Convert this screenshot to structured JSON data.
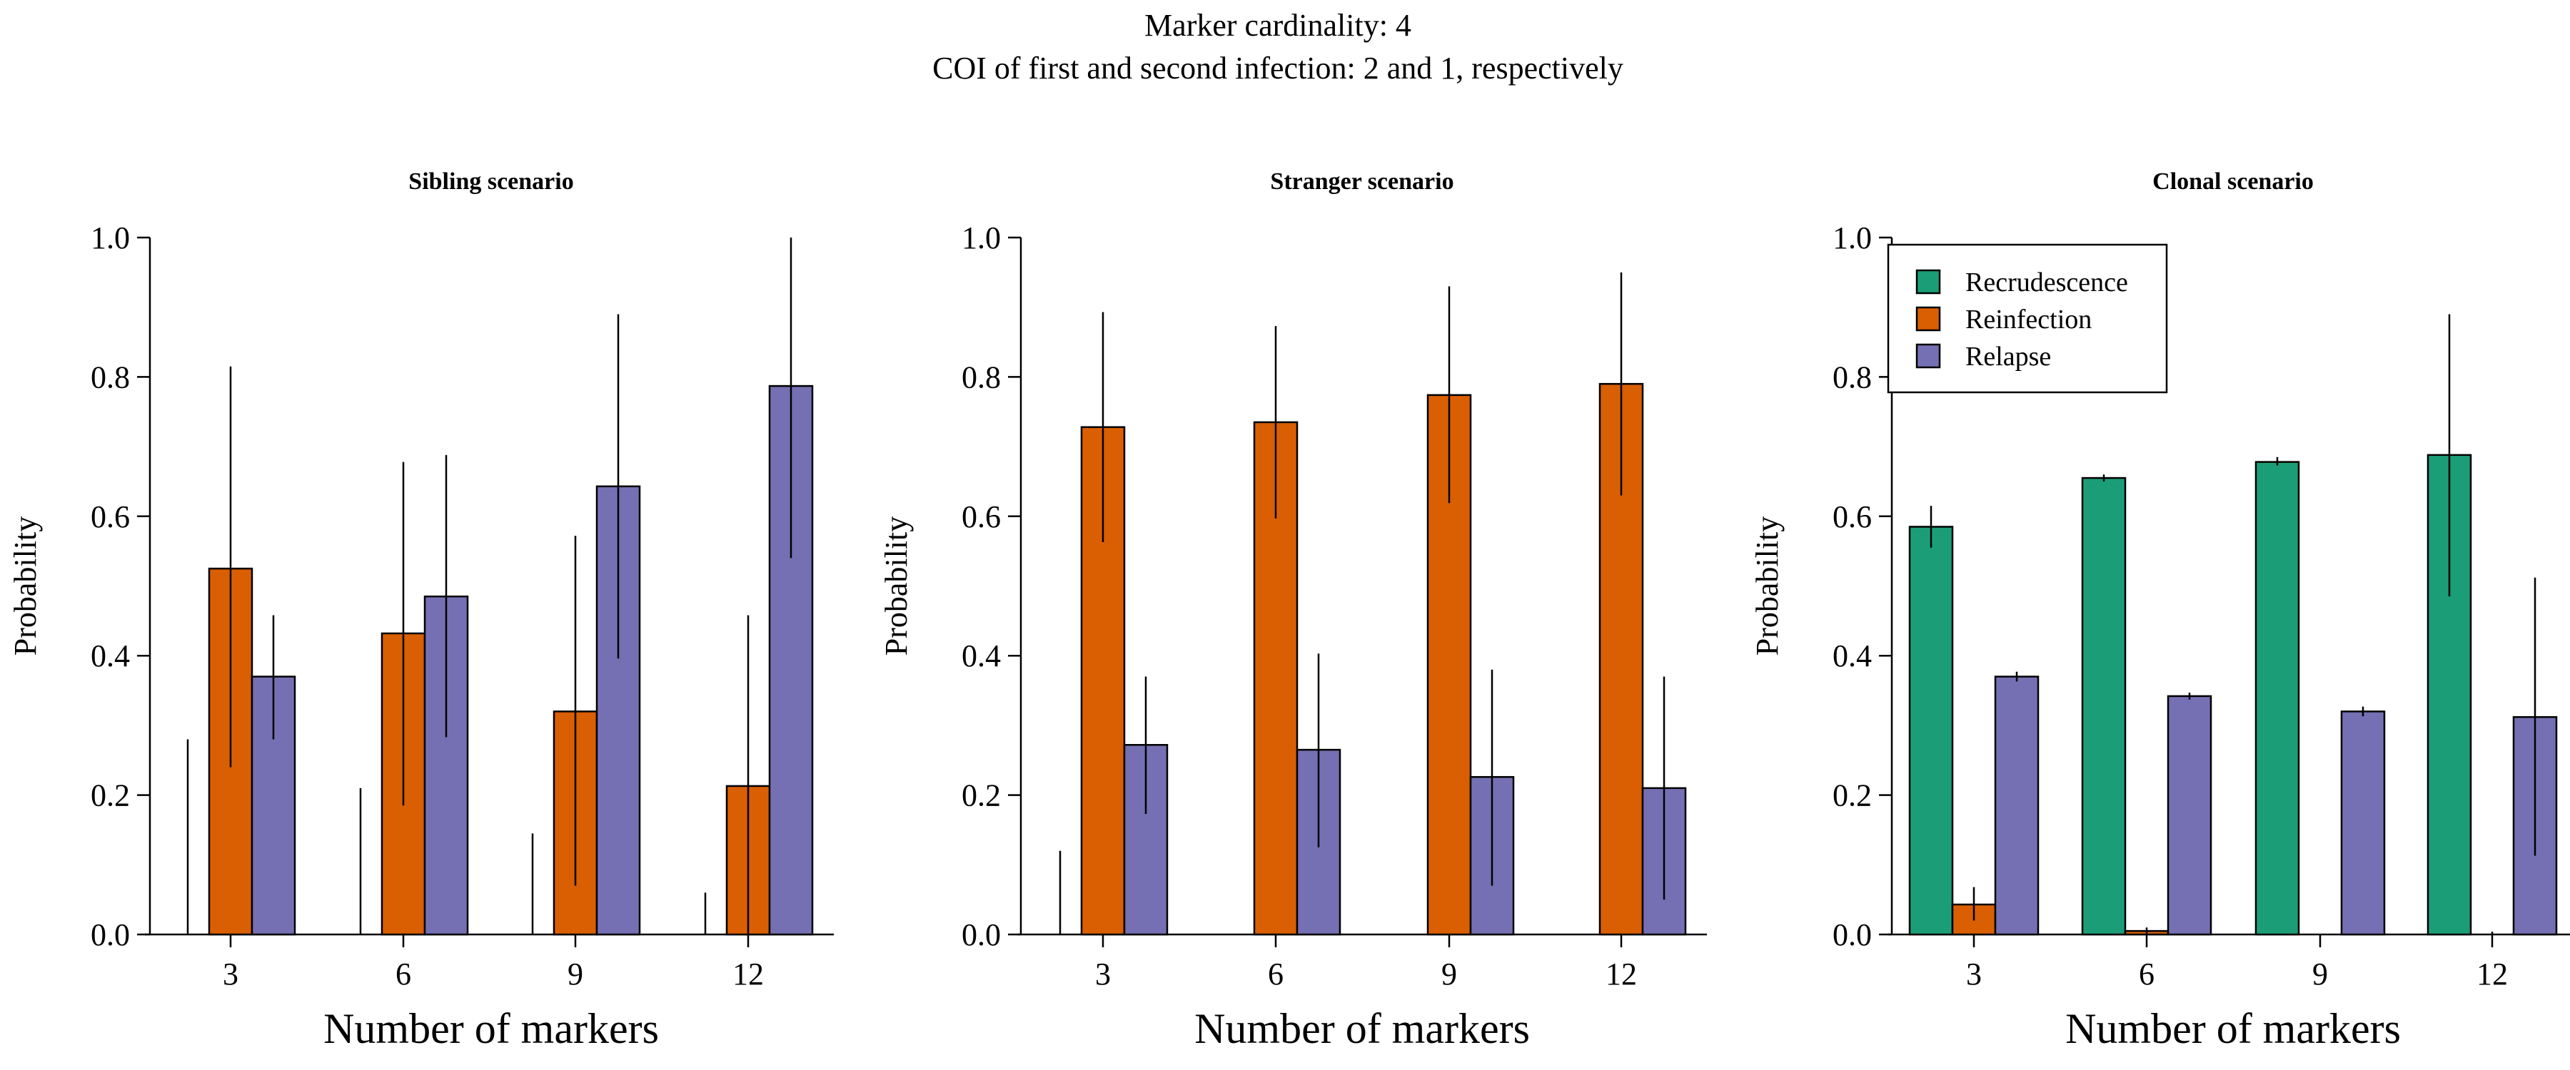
{
  "figure": {
    "title_line1": "Marker cardinality: 4",
    "title_line2": "COI of first and second infection: 2 and 1, respectively"
  },
  "chart_data": [
    {
      "type": "bar",
      "title": "Sibling scenario",
      "xlabel": "Number of markers",
      "ylabel": "Probability",
      "ylim": [
        0,
        1
      ],
      "yticks": [
        "0.0",
        "0.2",
        "0.4",
        "0.6",
        "0.8",
        "1.0"
      ],
      "categories": [
        "3",
        "6",
        "9",
        "12"
      ],
      "legend": false,
      "series": [
        {
          "name": "Recrudescence",
          "color": "#1b9e77",
          "values": [
            0.0,
            0.0,
            0.0,
            0.0
          ],
          "lower": [
            0.0,
            0.0,
            0.0,
            0.0
          ],
          "upper": [
            0.28,
            0.21,
            0.145,
            0.06
          ]
        },
        {
          "name": "Reinfection",
          "color": "#d95f02",
          "values": [
            0.525,
            0.432,
            0.32,
            0.213
          ],
          "lower": [
            0.24,
            0.185,
            0.07,
            0.0
          ],
          "upper": [
            0.815,
            0.678,
            0.572,
            0.458
          ]
        },
        {
          "name": "Relapse",
          "color": "#7570b3",
          "values": [
            0.37,
            0.485,
            0.643,
            0.787
          ],
          "lower": [
            0.28,
            0.283,
            0.396,
            0.54
          ],
          "upper": [
            0.458,
            0.688,
            0.89,
            1.0
          ]
        }
      ]
    },
    {
      "type": "bar",
      "title": "Stranger scenario",
      "xlabel": "Number of markers",
      "ylabel": "Probability",
      "ylim": [
        0,
        1
      ],
      "yticks": [
        "0.0",
        "0.2",
        "0.4",
        "0.6",
        "0.8",
        "1.0"
      ],
      "categories": [
        "3",
        "6",
        "9",
        "12"
      ],
      "legend": false,
      "series": [
        {
          "name": "Recrudescence",
          "color": "#1b9e77",
          "values": [
            0.0,
            0.0,
            0.0,
            0.0
          ],
          "lower": [
            0.0,
            0.0,
            0.0,
            0.0
          ],
          "upper": [
            0.12,
            0.0,
            0.0,
            0.0
          ]
        },
        {
          "name": "Reinfection",
          "color": "#d95f02",
          "values": [
            0.728,
            0.735,
            0.774,
            0.79
          ],
          "lower": [
            0.563,
            0.597,
            0.619,
            0.63
          ],
          "upper": [
            0.893,
            0.873,
            0.93,
            0.95
          ]
        },
        {
          "name": "Relapse",
          "color": "#7570b3",
          "values": [
            0.272,
            0.265,
            0.226,
            0.21
          ],
          "lower": [
            0.173,
            0.125,
            0.07,
            0.05
          ],
          "upper": [
            0.37,
            0.403,
            0.38,
            0.37
          ]
        }
      ]
    },
    {
      "type": "bar",
      "title": "Clonal scenario",
      "xlabel": "Number of markers",
      "ylabel": "Probability",
      "ylim": [
        0,
        1
      ],
      "yticks": [
        "0.0",
        "0.2",
        "0.4",
        "0.6",
        "0.8",
        "1.0"
      ],
      "categories": [
        "3",
        "6",
        "9",
        "12"
      ],
      "legend": true,
      "legend_position": "top-left",
      "series": [
        {
          "name": "Recrudescence",
          "color": "#1b9e77",
          "values": [
            0.585,
            0.655,
            0.678,
            0.688
          ],
          "lower": [
            0.555,
            0.65,
            0.673,
            0.485
          ],
          "upper": [
            0.615,
            0.66,
            0.685,
            0.89
          ]
        },
        {
          "name": "Reinfection",
          "color": "#d95f02",
          "values": [
            0.043,
            0.005,
            0.0,
            0.0
          ],
          "lower": [
            0.02,
            0.0,
            0.0,
            0.0
          ],
          "upper": [
            0.068,
            0.01,
            0.0,
            0.004
          ]
        },
        {
          "name": "Relapse",
          "color": "#7570b3",
          "values": [
            0.37,
            0.342,
            0.32,
            0.312
          ],
          "lower": [
            0.363,
            0.337,
            0.313,
            0.113
          ],
          "upper": [
            0.377,
            0.347,
            0.327,
            0.512
          ]
        }
      ]
    }
  ]
}
